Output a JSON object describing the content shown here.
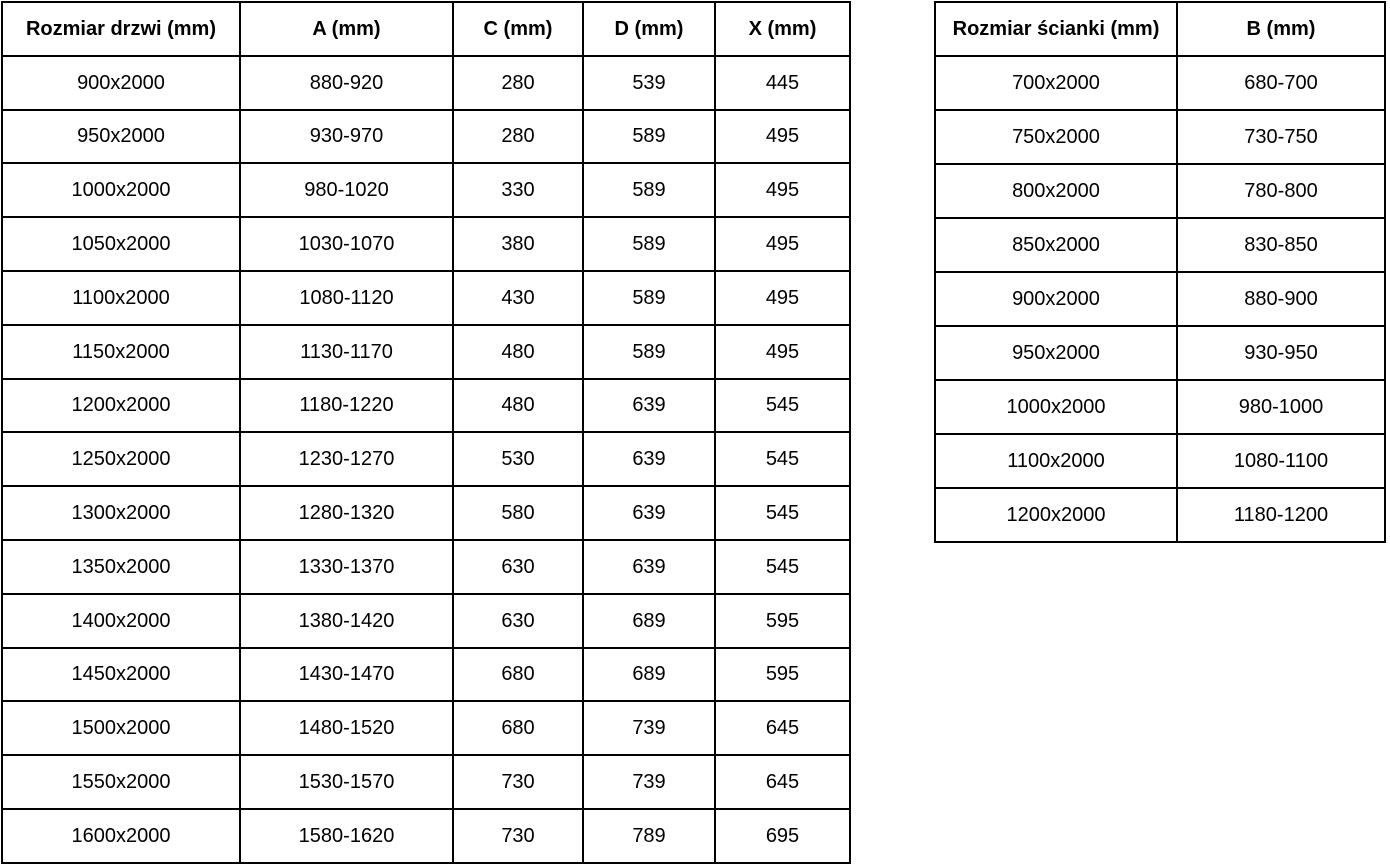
{
  "page": {
    "background_color": "#ffffff",
    "border_color": "#000000",
    "text_color": "#000000"
  },
  "tables": [
    {
      "id": "door-sizes",
      "headers": [
        "Rozmiar drzwi (mm)",
        "A (mm)",
        "C (mm)",
        "D (mm)",
        "X (mm)"
      ],
      "rows": [
        [
          "900x2000",
          "880-920",
          "280",
          "539",
          "445"
        ],
        [
          "950x2000",
          "930-970",
          "280",
          "589",
          "495"
        ],
        [
          "1000x2000",
          "980-1020",
          "330",
          "589",
          "495"
        ],
        [
          "1050x2000",
          "1030-1070",
          "380",
          "589",
          "495"
        ],
        [
          "1100x2000",
          "1080-1120",
          "430",
          "589",
          "495"
        ],
        [
          "1150x2000",
          "1130-1170",
          "480",
          "589",
          "495"
        ],
        [
          "1200x2000",
          "1180-1220",
          "480",
          "639",
          "545"
        ],
        [
          "1250x2000",
          "1230-1270",
          "530",
          "639",
          "545"
        ],
        [
          "1300x2000",
          "1280-1320",
          "580",
          "639",
          "545"
        ],
        [
          "1350x2000",
          "1330-1370",
          "630",
          "639",
          "545"
        ],
        [
          "1400x2000",
          "1380-1420",
          "630",
          "689",
          "595"
        ],
        [
          "1450x2000",
          "1430-1470",
          "680",
          "689",
          "595"
        ],
        [
          "1500x2000",
          "1480-1520",
          "680",
          "739",
          "645"
        ],
        [
          "1550x2000",
          "1530-1570",
          "730",
          "739",
          "645"
        ],
        [
          "1600x2000",
          "1580-1620",
          "730",
          "789",
          "695"
        ]
      ]
    },
    {
      "id": "wall-panel-sizes",
      "headers": [
        "Rozmiar ścianki (mm)",
        "B (mm)"
      ],
      "rows": [
        [
          "700x2000",
          "680-700"
        ],
        [
          "750x2000",
          "730-750"
        ],
        [
          "800x2000",
          "780-800"
        ],
        [
          "850x2000",
          "830-850"
        ],
        [
          "900x2000",
          "880-900"
        ],
        [
          "950x2000",
          "930-950"
        ],
        [
          "1000x2000",
          "980-1000"
        ],
        [
          "1100x2000",
          "1080-1100"
        ],
        [
          "1200x2000",
          "1180-1200"
        ]
      ]
    }
  ]
}
